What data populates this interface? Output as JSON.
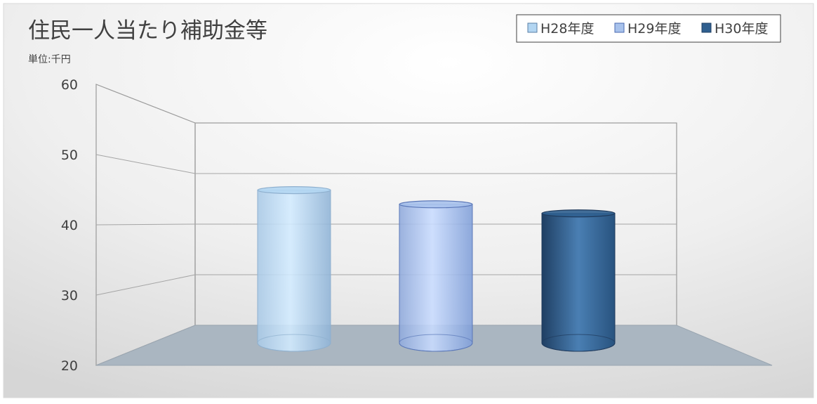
{
  "chart_data": {
    "type": "bar",
    "title": "住民一人当たり補助金等",
    "unit_label": "単位:千円",
    "categories": [
      "H28年度",
      "H29年度",
      "H30年度"
    ],
    "series": [
      {
        "name": "H28年度",
        "values": [
          47.0,
          null,
          null
        ],
        "color": "#b3d6f2"
      },
      {
        "name": "H29年度",
        "values": [
          null,
          44.2,
          null
        ],
        "color": "#a8c2ec"
      },
      {
        "name": "H30年度",
        "values": [
          null,
          null,
          42.4
        ],
        "color": "#2f5f8f"
      }
    ],
    "y_ticks": [
      "20",
      "30",
      "40",
      "50",
      "60"
    ],
    "ylim": [
      20,
      60
    ],
    "grid": true,
    "legend_position": "top-right",
    "style": "3d-cylinder"
  }
}
